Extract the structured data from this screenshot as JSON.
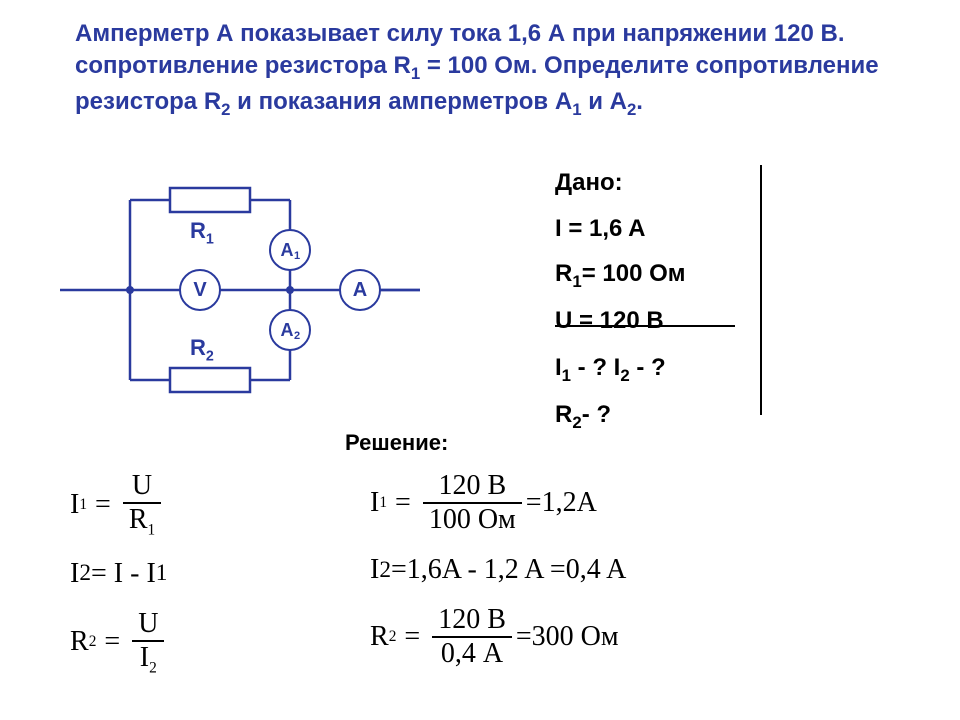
{
  "colors": {
    "accent": "#2a3a9e",
    "bg": "#ffffff",
    "text": "#000000"
  },
  "problem_html": "Амперметр А показывает силу тока 1,6 А при напряжении 120 В. сопротивление резистора R<sub>1</sub> = 100 Ом. Определите сопротивление резистора R<sub>2</sub> и показания амперметров А<sub>1</sub> и А<sub>2</sub>.",
  "given": {
    "title": "Дано:",
    "lines": [
      "I = 1,6 A",
      "R<sub>1</sub>= 100 Ом",
      "U = 120 В"
    ],
    "find": [
      "I<sub>1</sub> - ? I<sub>2</sub> - ?",
      "R<sub>2</sub>- ?"
    ]
  },
  "solution_label": "Решение:",
  "circuit": {
    "labels": {
      "R1": "R<sub>1</sub>",
      "R2": "R<sub>2</sub>",
      "V": "V",
      "A": "A",
      "A1": "A<sub>1</sub>",
      "A2": "A<sub>2</sub>"
    },
    "junction_radius": 4,
    "meter_radius": 20
  },
  "formulas": {
    "f1": {
      "lhs": "I",
      "lhs_sub": "1",
      "num": "U",
      "den": "R",
      "den_sub": "1"
    },
    "f2": "I<sub>2</sub> = I - I<sub>1</sub>",
    "f3": {
      "lhs": "R",
      "lhs_sub": "2",
      "num": "U",
      "den": "I",
      "den_sub": "2"
    }
  },
  "calcs": {
    "c1": {
      "lhs": "I",
      "lhs_sub": "1",
      "num": "120 В",
      "den": "100 Ом",
      "rhs": "=1,2A"
    },
    "c2": "I<sub>2</sub> =1,6A - 1,2 A =0,4 A",
    "c3": {
      "lhs": "R",
      "lhs_sub": "2",
      "num": "120 В",
      "den": "0,4 А",
      "rhs": "=300 Ом"
    }
  }
}
